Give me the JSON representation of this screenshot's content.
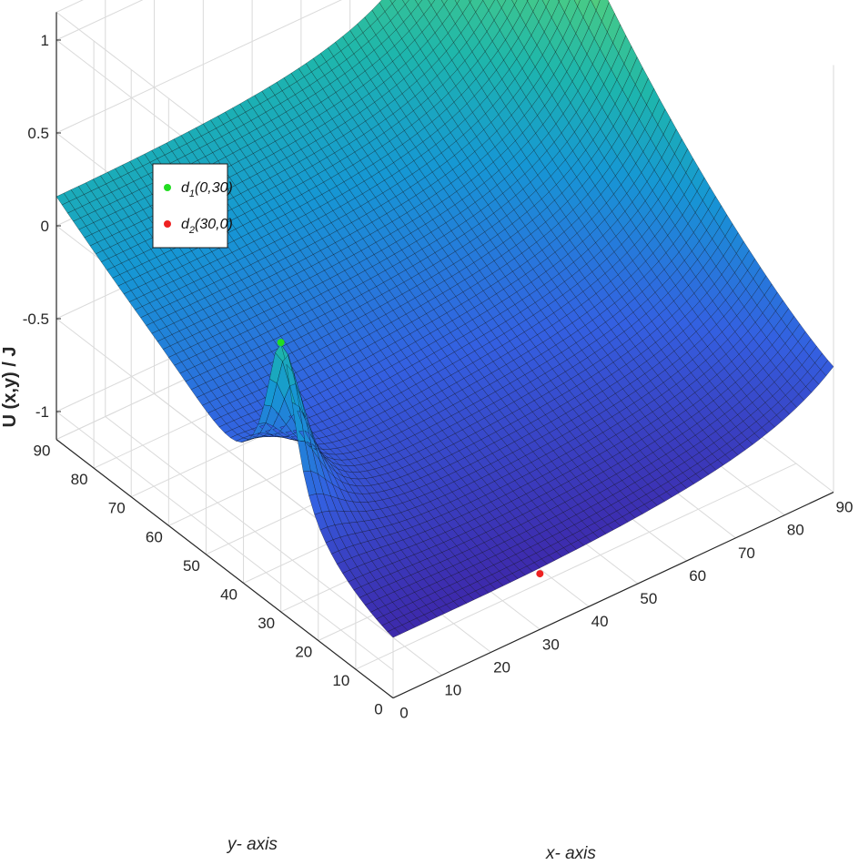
{
  "chart_data": {
    "type": "surface",
    "title": "",
    "xlabel": "x- axis",
    "ylabel": "y- axis",
    "zlabel": "U (x,y) / J",
    "xlim": [
      0,
      90
    ],
    "ylim": [
      0,
      90
    ],
    "zlim": [
      -1.15,
      1.15
    ],
    "x_ticks": [
      "0",
      "10",
      "20",
      "30",
      "40",
      "50",
      "60",
      "70",
      "80",
      "90"
    ],
    "y_ticks": [
      "0",
      "10",
      "20",
      "30",
      "40",
      "50",
      "60",
      "70",
      "80",
      "90"
    ],
    "z_ticks": [
      "-1",
      "-0.5",
      "0",
      "0.5",
      "1"
    ],
    "grid": true,
    "colormap": "parula",
    "edge_color": "#000000",
    "peaks": [
      {
        "x": 0,
        "y": 30,
        "z": 0.3
      },
      {
        "x": 90,
        "y": 90,
        "z": 1.15
      }
    ],
    "points": [
      {
        "label": "d",
        "sub": "1",
        "coords": "(0,30)",
        "x": 0,
        "y": 30,
        "z": 0.3,
        "color": "#22dd22"
      },
      {
        "label": "d",
        "sub": "2",
        "coords": "(30,0)",
        "x": 30,
        "y": 0,
        "z": -0.85,
        "color": "#ee2222"
      }
    ],
    "legend": {
      "position": "top-left"
    }
  }
}
